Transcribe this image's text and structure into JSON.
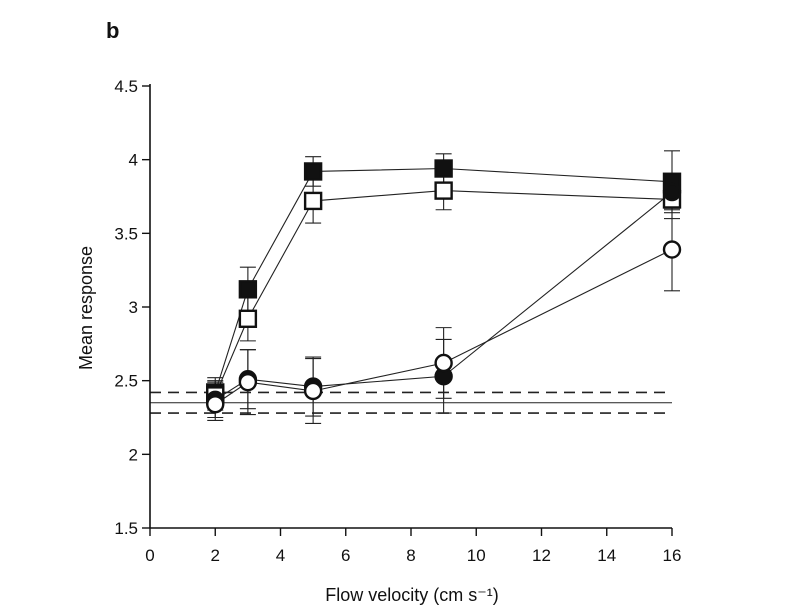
{
  "panel_label": "b",
  "chart_data": {
    "type": "line",
    "title": "",
    "xlabel": "Flow velocity (cm s⁻¹)",
    "ylabel": "Mean response",
    "xlim": [
      0,
      16
    ],
    "ylim": [
      1.5,
      4.5
    ],
    "xticks": [
      0,
      2,
      4,
      6,
      8,
      10,
      12,
      14,
      16
    ],
    "yticks": [
      1.5,
      2,
      2.5,
      3,
      3.5,
      4,
      4.5
    ],
    "ytick_labels": [
      "1.5",
      "2",
      "2.5",
      "3",
      "3.5",
      "4",
      "4.5"
    ],
    "grid": false,
    "legend": "none",
    "series": [
      {
        "marker": "square-filled",
        "x": [
          2,
          3,
          5,
          9,
          16
        ],
        "y": [
          2.42,
          3.12,
          3.92,
          3.94,
          3.85
        ],
        "err": [
          0.1,
          0.15,
          0.1,
          0.1,
          0.21
        ]
      },
      {
        "marker": "square-open",
        "x": [
          2,
          3,
          5,
          9,
          16
        ],
        "y": [
          2.4,
          2.92,
          3.72,
          3.79,
          3.73
        ],
        "err": [
          0.1,
          0.15,
          0.15,
          0.13,
          0.13
        ]
      },
      {
        "marker": "circle-filled",
        "x": [
          2,
          3,
          5,
          9,
          16
        ],
        "y": [
          2.37,
          2.51,
          2.46,
          2.53,
          3.78
        ],
        "err": [
          0.12,
          0.2,
          0.2,
          0.25,
          0.12
        ]
      },
      {
        "marker": "circle-open",
        "x": [
          2,
          3,
          5,
          9,
          16
        ],
        "y": [
          2.34,
          2.49,
          2.43,
          2.62,
          3.39
        ],
        "err": [
          0.11,
          0.22,
          0.22,
          0.24,
          0.28
        ]
      }
    ],
    "reference_lines": [
      {
        "y": 2.42,
        "style": "dashed"
      },
      {
        "y": 2.35,
        "style": "solid"
      },
      {
        "y": 2.28,
        "style": "dashed"
      }
    ]
  }
}
